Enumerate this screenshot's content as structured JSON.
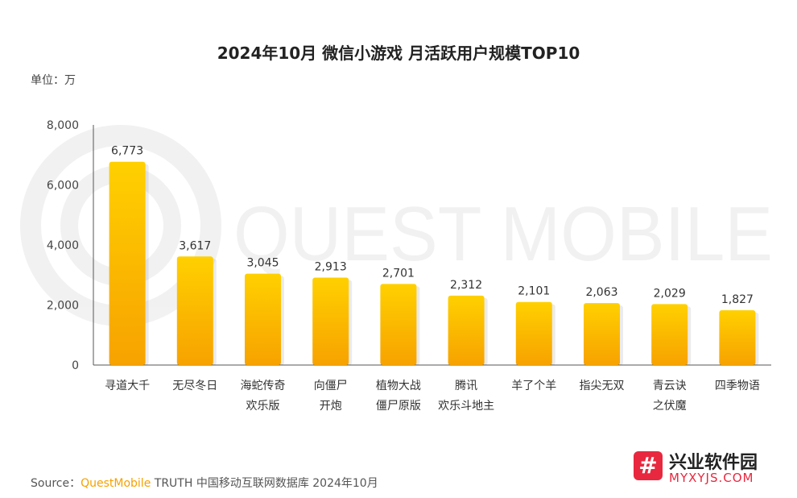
{
  "chart_data": {
    "type": "bar",
    "title": "2024年10月 微信小游戏 月活跃用户规模TOP10",
    "unit_label": "单位：万",
    "categories": [
      "寻道大千",
      "无尽冬日",
      "海蛇传奇\n欢乐版",
      "向僵尸\n开炮",
      "植物大战\n僵尸原版",
      "腾讯\n欢乐斗地主",
      "羊了个羊",
      "指尖无双",
      "青云诀\n之伏魔",
      "四季物语"
    ],
    "values": [
      6773,
      3617,
      3045,
      2913,
      2701,
      2312,
      2101,
      2063,
      2029,
      1827
    ],
    "value_labels": [
      "6,773",
      "3,617",
      "3,045",
      "2,913",
      "2,701",
      "2,312",
      "2,101",
      "2,063",
      "2,029",
      "1,827"
    ],
    "ylim": [
      0,
      8000
    ],
    "yticks": [
      0,
      2000,
      4000,
      6000,
      8000
    ],
    "ytick_labels": [
      "0",
      "2,000",
      "4,000",
      "6,000",
      "8,000"
    ],
    "grid": false,
    "legend": "none",
    "bar_color_top": "#ffd000",
    "bar_color_bottom": "#f7a200"
  },
  "watermark": "QUEST MOBILE",
  "source": {
    "prefix": "Source：",
    "brand": "QuestMobile",
    "rest": " TRUTH 中国移动互联网数据库 2024年10月"
  },
  "site_logo": {
    "mark": "#",
    "name_cn": "兴业软件园",
    "name_en": "MYXYJS.COM"
  }
}
